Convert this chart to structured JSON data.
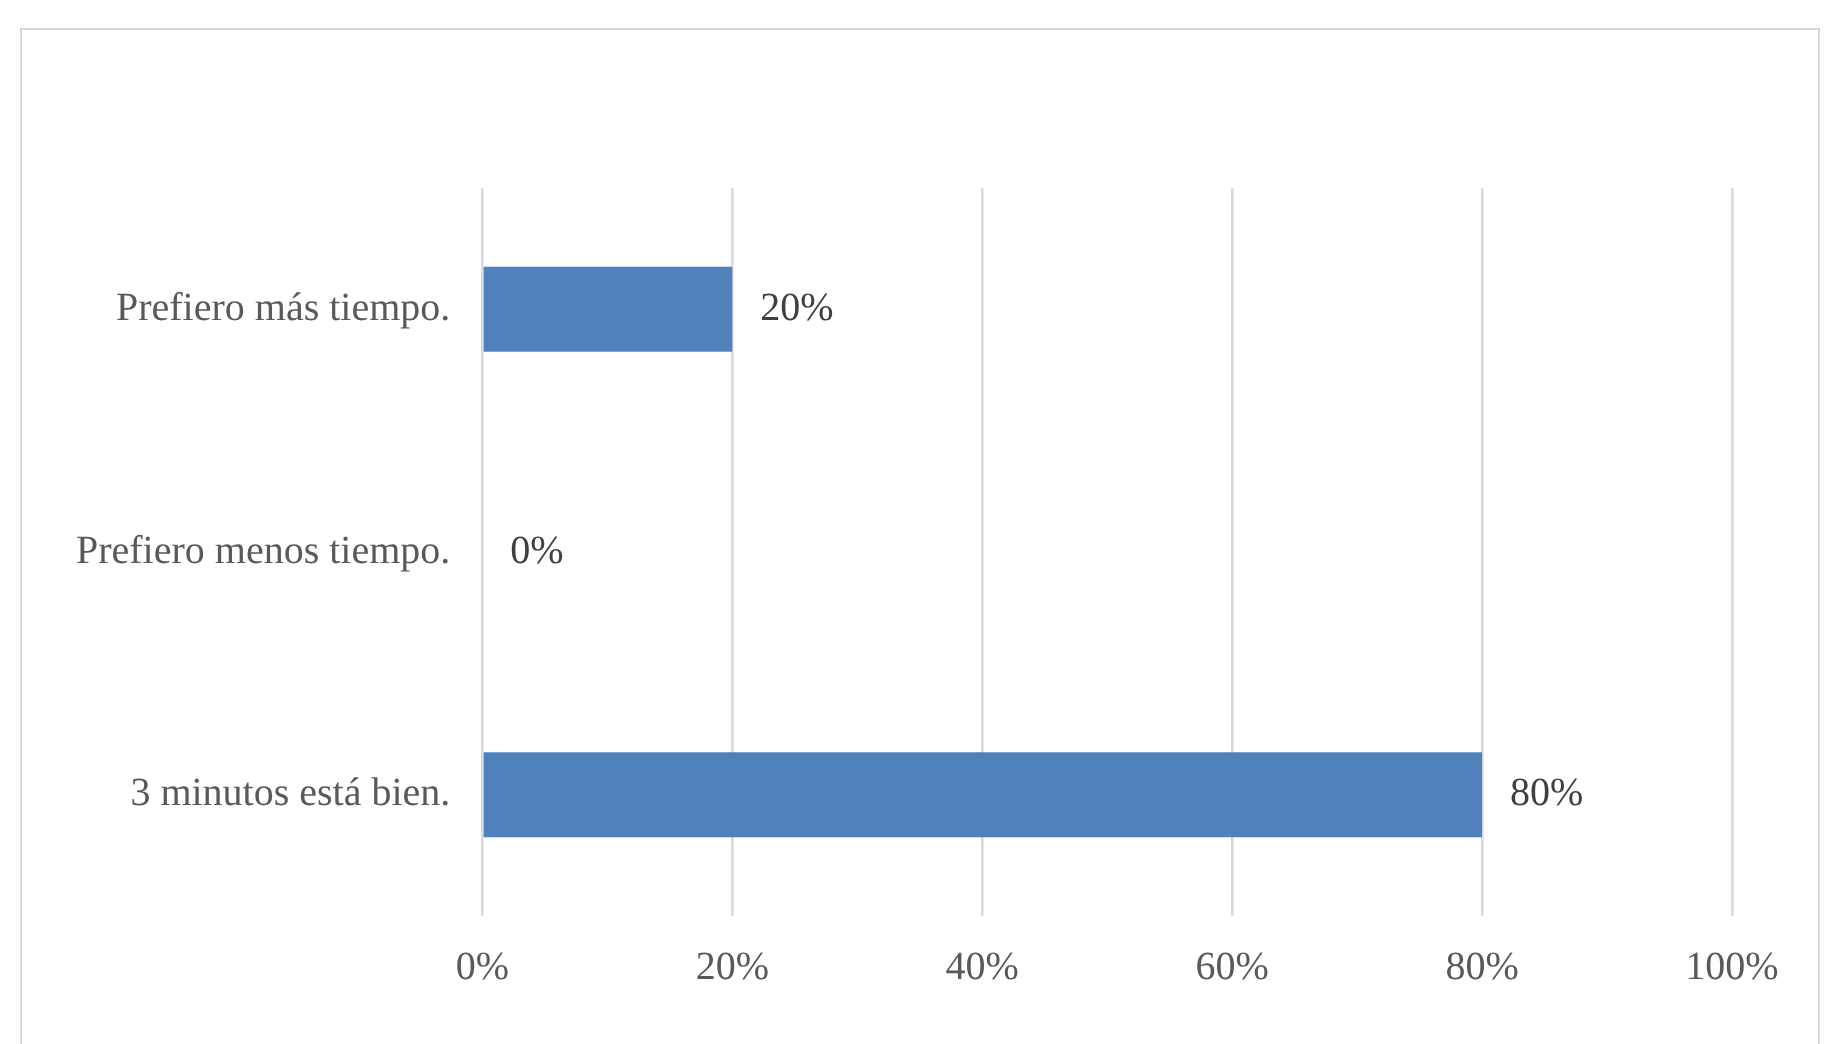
{
  "chart_data": {
    "type": "bar",
    "orientation": "horizontal",
    "categories": [
      "Prefiero más tiempo.",
      "Prefiero menos tiempo.",
      "3 minutos está bien."
    ],
    "values": [
      20,
      0,
      80
    ],
    "value_labels": [
      "20%",
      "0%",
      "80%"
    ],
    "color": "#4f81bd",
    "xlim": [
      0,
      100
    ],
    "xticks": [
      {
        "value": 0,
        "label": "0%"
      },
      {
        "value": 20,
        "label": "20%"
      },
      {
        "value": 40,
        "label": "40%"
      },
      {
        "value": 60,
        "label": "60%"
      },
      {
        "value": 80,
        "label": "80%"
      },
      {
        "value": 100,
        "label": "100%"
      }
    ],
    "grid": "x",
    "legend": false
  }
}
